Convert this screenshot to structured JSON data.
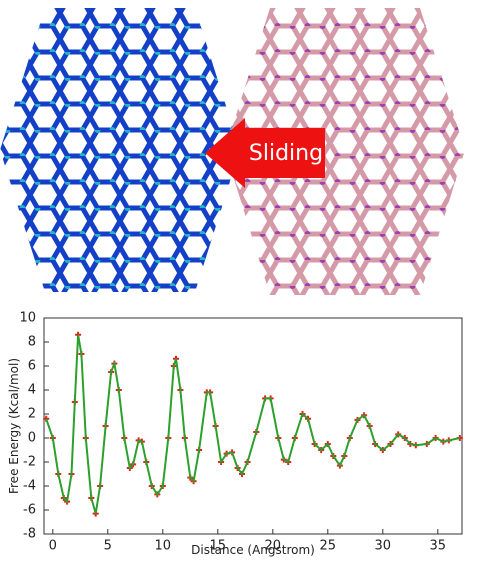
{
  "image": {
    "arrow_label": "Sliding"
  },
  "chart_data": {
    "type": "line",
    "xlabel": "Distance (Angstrom)",
    "ylabel": "Free Energy (Kcal/mol)",
    "xlim": [
      -0.8,
      37.2
    ],
    "ylim": [
      -8,
      10
    ],
    "xticks": [
      0,
      5,
      10,
      15,
      20,
      25,
      30,
      35
    ],
    "yticks": [
      -8,
      -6,
      -4,
      -2,
      0,
      2,
      4,
      6,
      8,
      10
    ],
    "series": [
      {
        "color": "#2ca02c",
        "marker_color": "#e8201a",
        "x": [
          -0.6,
          0,
          0.5,
          1,
          1.3,
          1.7,
          2,
          2.3,
          2.6,
          3,
          3.5,
          3.9,
          4.3,
          4.8,
          5.3,
          5.6,
          6,
          6.5,
          7,
          7.3,
          7.8,
          8.1,
          8.5,
          9,
          9.5,
          10,
          10.5,
          11,
          11.2,
          11.6,
          12,
          12.5,
          12.8,
          13.3,
          14,
          14.3,
          14.8,
          15.3,
          15.8,
          16.3,
          16.8,
          17.2,
          17.7,
          18.5,
          19.3,
          19.8,
          20.5,
          21,
          21.4,
          22,
          22.7,
          23.2,
          23.8,
          24.4,
          25,
          25.5,
          26.1,
          26.5,
          27,
          27.7,
          28.3,
          28.8,
          29.3,
          30,
          30.7,
          31.4,
          32,
          32.5,
          33,
          34,
          34.8,
          35.5,
          36,
          37
        ],
        "values": [
          1.6,
          0,
          -3,
          -5,
          -5.3,
          -3,
          3,
          8.6,
          7,
          0,
          -5,
          -6.3,
          -4,
          1,
          5.5,
          6.2,
          4,
          0,
          -2.5,
          -2.2,
          -0.2,
          -0.3,
          -2,
          -4,
          -4.7,
          -4,
          0,
          6,
          6.6,
          4,
          0,
          -3.3,
          -3.6,
          -1,
          3.8,
          3.8,
          1,
          -2,
          -1.3,
          -1.2,
          -2.5,
          -3,
          -2,
          0.5,
          3.3,
          3.3,
          0,
          -1.8,
          -2,
          0,
          2,
          1.6,
          -0.5,
          -1,
          -0.5,
          -1.5,
          -2.3,
          -1.5,
          0,
          1.5,
          1.9,
          1,
          -0.5,
          -1,
          -0.5,
          0.3,
          0,
          -0.5,
          -0.6,
          -0.5,
          0,
          -0.3,
          -0.2,
          0
        ]
      }
    ]
  }
}
